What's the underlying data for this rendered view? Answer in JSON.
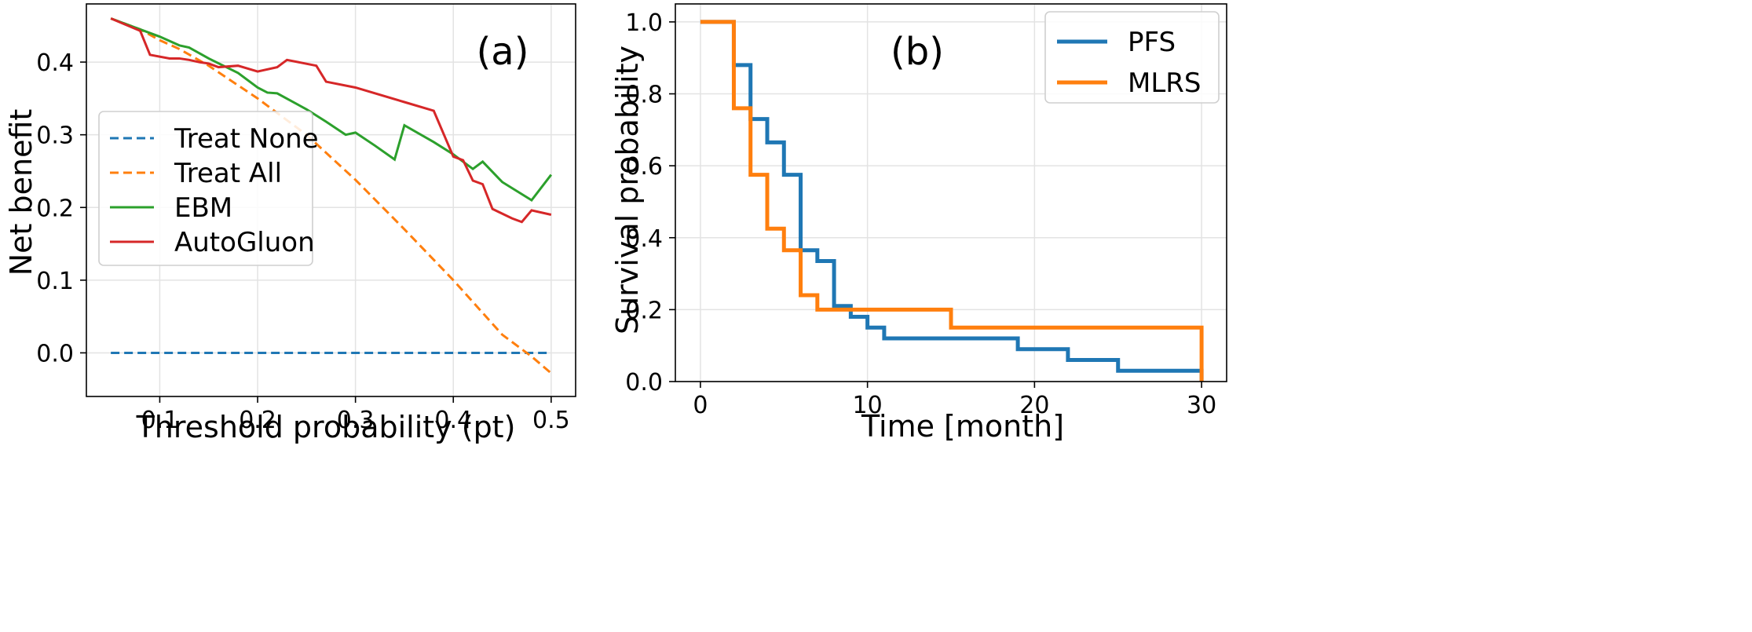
{
  "chart_data": [
    {
      "type": "line",
      "panel_label": "(a)",
      "xlabel": "Threshold probability (pt)",
      "ylabel": "Net benefit",
      "xlim": [
        0.025,
        0.525
      ],
      "ylim": [
        -0.06,
        0.48
      ],
      "xticks": [
        0.1,
        0.2,
        0.3,
        0.4,
        0.5
      ],
      "xtick_labels": [
        "0.1",
        "0.2",
        "0.3",
        "0.4",
        "0.5"
      ],
      "yticks": [
        0.0,
        0.1,
        0.2,
        0.3,
        0.4
      ],
      "ytick_labels": [
        "0.0",
        "0.1",
        "0.2",
        "0.3",
        "0.4"
      ],
      "grid": true,
      "legend_position": "center-left",
      "series": [
        {
          "name": "Treat None",
          "color": "#1f77b4",
          "dash": "dashed",
          "x": [
            0.05,
            0.5
          ],
          "y": [
            0.0,
            0.0
          ]
        },
        {
          "name": "Treat All",
          "color": "#ff7f0e",
          "dash": "dashed",
          "x": [
            0.05,
            0.08,
            0.1,
            0.12,
            0.15,
            0.2,
            0.25,
            0.3,
            0.35,
            0.4,
            0.45,
            0.48,
            0.5
          ],
          "y": [
            0.46,
            0.445,
            0.43,
            0.418,
            0.395,
            0.35,
            0.3,
            0.238,
            0.17,
            0.1,
            0.025,
            -0.005,
            -0.028
          ]
        },
        {
          "name": "EBM",
          "color": "#2ca02c",
          "dash": "solid",
          "x": [
            0.05,
            0.08,
            0.1,
            0.12,
            0.13,
            0.15,
            0.18,
            0.2,
            0.21,
            0.22,
            0.25,
            0.27,
            0.29,
            0.3,
            0.32,
            0.34,
            0.35,
            0.38,
            0.4,
            0.41,
            0.42,
            0.43,
            0.45,
            0.48,
            0.5
          ],
          "y": [
            0.46,
            0.445,
            0.435,
            0.423,
            0.42,
            0.405,
            0.385,
            0.365,
            0.358,
            0.357,
            0.335,
            0.318,
            0.3,
            0.303,
            0.285,
            0.266,
            0.313,
            0.29,
            0.273,
            0.263,
            0.253,
            0.263,
            0.235,
            0.21,
            0.245
          ]
        },
        {
          "name": "AutoGluon",
          "color": "#d62728",
          "dash": "solid",
          "x": [
            0.05,
            0.08,
            0.09,
            0.11,
            0.12,
            0.13,
            0.14,
            0.15,
            0.16,
            0.18,
            0.2,
            0.22,
            0.23,
            0.26,
            0.27,
            0.3,
            0.35,
            0.38,
            0.4,
            0.41,
            0.42,
            0.43,
            0.44,
            0.46,
            0.47,
            0.48,
            0.5
          ],
          "y": [
            0.46,
            0.443,
            0.41,
            0.405,
            0.405,
            0.403,
            0.4,
            0.398,
            0.393,
            0.395,
            0.387,
            0.393,
            0.403,
            0.395,
            0.373,
            0.365,
            0.345,
            0.333,
            0.27,
            0.265,
            0.237,
            0.232,
            0.198,
            0.185,
            0.18,
            0.196,
            0.19
          ]
        }
      ]
    },
    {
      "type": "line",
      "panel_label": "(b)",
      "xlabel": "Time [month]",
      "ylabel": "Survival probability",
      "xlim": [
        -1.5,
        31.5
      ],
      "ylim": [
        0.0,
        1.05
      ],
      "xticks": [
        0,
        10,
        20,
        30
      ],
      "xtick_labels": [
        "0",
        "10",
        "20",
        "30"
      ],
      "yticks": [
        0.0,
        0.2,
        0.4,
        0.6,
        0.8,
        1.0
      ],
      "ytick_labels": [
        "0.0",
        "0.2",
        "0.4",
        "0.6",
        "0.8",
        "1.0"
      ],
      "grid": true,
      "legend_position": "top-right",
      "step": "post",
      "series": [
        {
          "name": "PFS",
          "color": "#1f77b4",
          "x": [
            0,
            2,
            3,
            4,
            5,
            6,
            7,
            8,
            9,
            10,
            11,
            19,
            22,
            25,
            30,
            30
          ],
          "y": [
            1.0,
            0.88,
            0.73,
            0.665,
            0.575,
            0.365,
            0.335,
            0.21,
            0.18,
            0.15,
            0.12,
            0.09,
            0.06,
            0.03,
            0.03,
            0.0
          ]
        },
        {
          "name": "MLRS",
          "color": "#ff7f0e",
          "x": [
            0,
            2,
            3,
            4,
            5,
            6,
            7,
            15,
            30,
            30
          ],
          "y": [
            1.0,
            0.76,
            0.575,
            0.425,
            0.365,
            0.24,
            0.2,
            0.15,
            0.15,
            0.0
          ]
        }
      ]
    }
  ]
}
